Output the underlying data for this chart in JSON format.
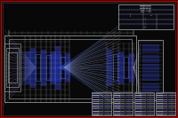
{
  "bg_color": "#080808",
  "border_color": "#bb0000",
  "line_white": "#b0b0b0",
  "line_blue": "#2233bb",
  "line_blue2": "#3355dd",
  "line_cyan": "#00aaaa",
  "fig_w": 2.0,
  "fig_h": 1.33,
  "dpi": 100
}
